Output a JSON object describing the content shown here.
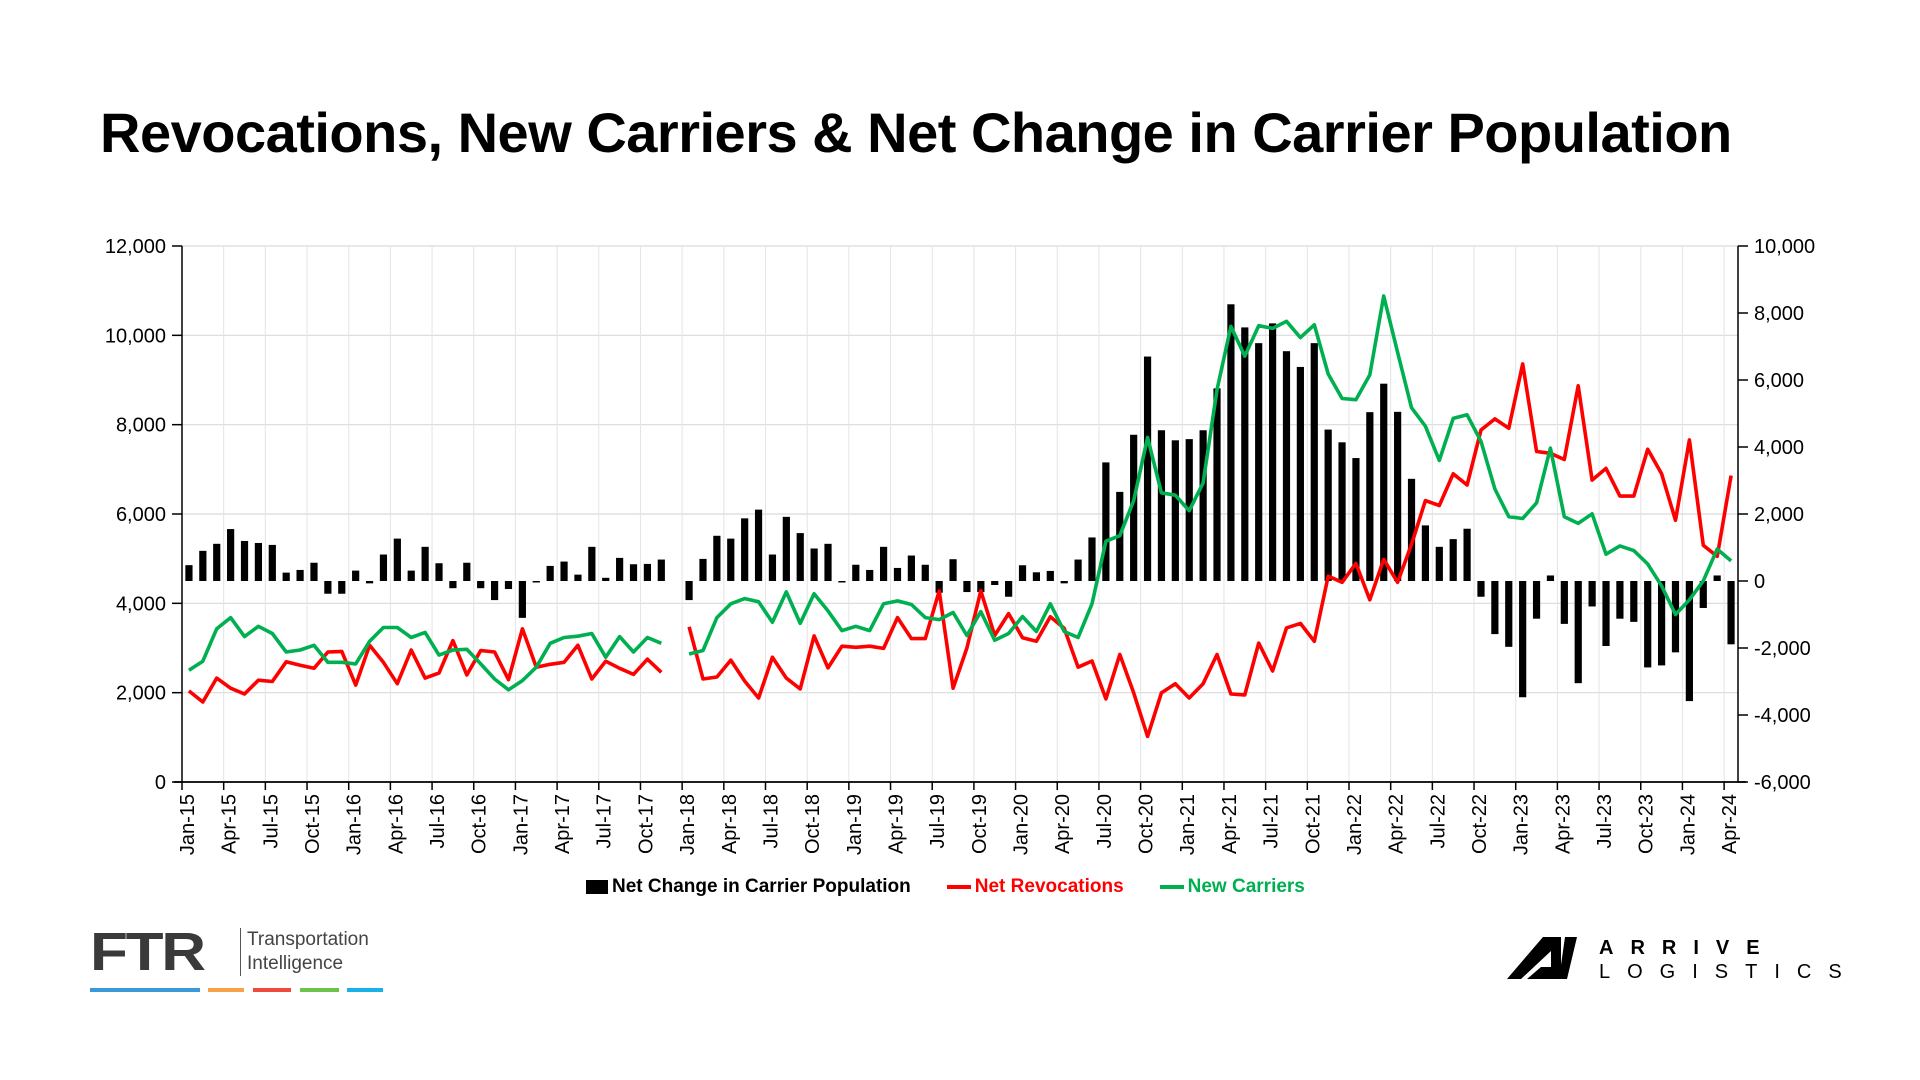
{
  "chart_data": {
    "type": "bar+line",
    "title": "Revocations, New Carriers & Net Change in Carrier Population",
    "left_axis": {
      "range": [
        0,
        12000
      ],
      "ticks": [
        "0",
        "2,000",
        "4,000",
        "6,000",
        "8,000",
        "10,000",
        "12,000"
      ],
      "tick_values": [
        0,
        2000,
        4000,
        6000,
        8000,
        10000,
        12000
      ]
    },
    "right_axis": {
      "range": [
        -6000,
        10000
      ],
      "ticks": [
        "-6,000",
        "-4,000",
        "-2,000",
        "0",
        "2,000",
        "4,000",
        "6,000",
        "8,000",
        "10,000"
      ],
      "tick_values": [
        -6000,
        -4000,
        -2000,
        0,
        2000,
        4000,
        6000,
        8000,
        10000
      ]
    },
    "x_start": "Jan-15",
    "x_end": "Apr-24",
    "x_count": 112,
    "x_labels": [
      "Jan-15",
      "Apr-15",
      "Jul-15",
      "Oct-15",
      "Jan-16",
      "Apr-16",
      "Jul-16",
      "Oct-16",
      "Jan-17",
      "Apr-17",
      "Jul-17",
      "Oct-17",
      "Jan-18",
      "Apr-18",
      "Jul-18",
      "Oct-18",
      "Jan-19",
      "Apr-19",
      "Jul-19",
      "Oct-19",
      "Jan-20",
      "Apr-20",
      "Jul-20",
      "Oct-20",
      "Jan-21",
      "Apr-21",
      "Jul-21",
      "Oct-21",
      "Jan-22",
      "Apr-22",
      "Jul-22",
      "Oct-22",
      "Jan-23",
      "Apr-23",
      "Jul-23",
      "Oct-23",
      "Jan-24",
      "Apr-24"
    ],
    "grid": true,
    "legend_position": "bottom",
    "series": [
      {
        "name": "Net Change in Carrier Population",
        "type": "bar",
        "axis": "right",
        "color": "#000000",
        "values": [
          473,
          900,
          1110,
          1550,
          1195,
          1135,
          1077,
          250,
          330,
          545,
          -380,
          -380,
          310,
          -70,
          790,
          1265,
          310,
          1020,
          530,
          -215,
          545,
          -215,
          -570,
          -240,
          -1100,
          -10,
          450,
          580,
          190,
          1020,
          95,
          690,
          500,
          510,
          640,
          null,
          -570,
          660,
          1350,
          1265,
          1870,
          2130,
          790,
          1915,
          1430,
          970,
          1110,
          -10,
          485,
          330,
          1020,
          390,
          760,
          485,
          -350,
          650,
          -330,
          -330,
          -120,
          -470,
          470,
          260,
          300,
          -70,
          640,
          1300,
          3540,
          2660,
          4365,
          6700,
          4500,
          4200,
          4235,
          4500,
          5750,
          8260,
          7570,
          7100,
          7690,
          6860,
          6390,
          7100,
          4520,
          4140,
          3670,
          5040,
          5890,
          5050,
          3050,
          1660,
          1020,
          1250,
          1560,
          -470,
          -1585,
          -1965,
          -3470,
          -1125,
          165,
          -1280,
          -3050,
          -760,
          -1940,
          -1125,
          -1220,
          -2580,
          -2520,
          -2130,
          -3585,
          -805,
          165,
          -1890
        ]
      },
      {
        "name": "Net Revocations",
        "type": "line",
        "axis": "left",
        "color": "#ff0000",
        "values": [
          2040,
          1790,
          2325,
          2100,
          1970,
          2280,
          2250,
          2690,
          2615,
          2545,
          2910,
          2925,
          2170,
          3060,
          2680,
          2200,
          2955,
          2325,
          2440,
          3165,
          2395,
          2945,
          2910,
          2290,
          3430,
          2570,
          2635,
          2680,
          3060,
          2305,
          2705,
          2545,
          2410,
          2750,
          2455,
          null,
          3475,
          2305,
          2350,
          2730,
          2260,
          1880,
          2795,
          2325,
          2085,
          3270,
          2555,
          3040,
          3015,
          3040,
          2990,
          3680,
          3210,
          3210,
          4275,
          2100,
          3000,
          4280,
          3280,
          3770,
          3230,
          3150,
          3700,
          3440,
          2570,
          2710,
          1860,
          2855,
          1995,
          1020,
          1995,
          2200,
          1880,
          2200,
          2855,
          1970,
          1950,
          3110,
          2485,
          3450,
          3550,
          3150,
          4610,
          4470,
          4895,
          4080,
          4985,
          4470,
          5320,
          6300,
          6190,
          6900,
          6650,
          7880,
          8130,
          7920,
          9360,
          7400,
          7360,
          7220,
          8870,
          6760,
          7020,
          6400,
          6400,
          7450,
          6900,
          5860,
          7660,
          5300,
          5050,
          6860
        ]
      },
      {
        "name": "New Carriers",
        "type": "line",
        "axis": "left",
        "color": "#00b050",
        "values": [
          2500,
          2705,
          3430,
          3680,
          3255,
          3485,
          3325,
          2910,
          2955,
          3060,
          2680,
          2680,
          2645,
          3150,
          3460,
          3460,
          3235,
          3350,
          2840,
          2955,
          2970,
          2645,
          2305,
          2065,
          2270,
          2570,
          3105,
          3235,
          3265,
          3325,
          2795,
          3255,
          2910,
          3235,
          3105,
          null,
          2865,
          2945,
          3680,
          3990,
          4105,
          4035,
          3575,
          4255,
          3550,
          4215,
          3830,
          3390,
          3485,
          3390,
          3990,
          4055,
          3975,
          3680,
          3635,
          3795,
          3280,
          3815,
          3175,
          3325,
          3705,
          3370,
          3990,
          3370,
          3235,
          3990,
          5390,
          5515,
          6300,
          7715,
          6475,
          6420,
          6075,
          6695,
          8780,
          10200,
          9535,
          10215,
          10155,
          10315,
          9950,
          10235,
          9135,
          8585,
          8560,
          9115,
          10880,
          9620,
          8380,
          7965,
          7200,
          8140,
          8220,
          7625,
          6560,
          5940,
          5900,
          6250,
          7475,
          5940,
          5790,
          6005,
          5100,
          5285,
          5180,
          4880,
          4390,
          3750,
          4080,
          4505,
          5215,
          4950
        ]
      }
    ]
  },
  "legend": {
    "bar_label": "Net Change in Carrier Population",
    "red_label": "Net Revocations",
    "green_label": "New Carriers"
  },
  "logos": {
    "ftr_mark": "FTR",
    "ftr_tagline_1": "Transportation",
    "ftr_tagline_2": "Intelligence",
    "ftr_bar_colors": [
      "#3a9ad9",
      "#f7a14a",
      "#ef4a3c",
      "#6cc24a",
      "#1ab0e8"
    ],
    "arrive_word_1": "ARRIVE",
    "arrive_word_2": "LOGISTICS"
  }
}
